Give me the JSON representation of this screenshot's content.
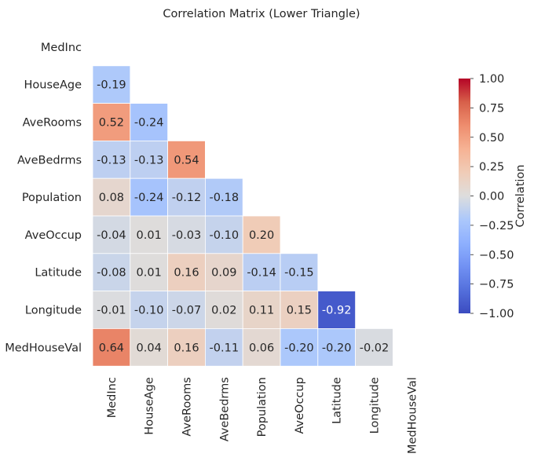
{
  "chart_data": {
    "type": "heatmap",
    "title": "Correlation Matrix (Lower Triangle)",
    "variables": [
      "MedInc",
      "HouseAge",
      "AveRooms",
      "AveBedrms",
      "Population",
      "AveOccup",
      "Latitude",
      "Longitude",
      "MedHouseVal"
    ],
    "mask": "upper-triangle-including-diagonal",
    "values": [
      [
        null,
        null,
        null,
        null,
        null,
        null,
        null,
        null,
        null
      ],
      [
        -0.19,
        null,
        null,
        null,
        null,
        null,
        null,
        null,
        null
      ],
      [
        0.52,
        -0.24,
        null,
        null,
        null,
        null,
        null,
        null,
        null
      ],
      [
        -0.13,
        -0.13,
        0.54,
        null,
        null,
        null,
        null,
        null,
        null
      ],
      [
        0.08,
        -0.24,
        -0.12,
        -0.18,
        null,
        null,
        null,
        null,
        null
      ],
      [
        -0.04,
        0.01,
        -0.03,
        -0.1,
        0.2,
        null,
        null,
        null,
        null
      ],
      [
        -0.08,
        0.01,
        0.16,
        0.09,
        -0.14,
        -0.15,
        null,
        null,
        null
      ],
      [
        -0.01,
        -0.1,
        -0.07,
        0.02,
        0.11,
        0.15,
        -0.92,
        null,
        null
      ],
      [
        0.64,
        0.04,
        0.16,
        -0.11,
        0.06,
        -0.2,
        -0.2,
        -0.02,
        null
      ]
    ],
    "value_format": "2 decimals",
    "colormap": "coolwarm",
    "vmin": -1.0,
    "vmax": 1.0,
    "colorbar": {
      "label": "Correlation",
      "ticks": [
        1.0,
        0.75,
        0.5,
        0.25,
        0.0,
        -0.25,
        -0.5,
        -0.75,
        -1.0
      ],
      "tick_labels": [
        "1.00",
        "0.75",
        "0.50",
        "0.25",
        "0.00",
        "−0.25",
        "−0.50",
        "−0.75",
        "−1.00"
      ],
      "placement": "right"
    },
    "grid": false,
    "cell_border_color": "#ffffff"
  }
}
